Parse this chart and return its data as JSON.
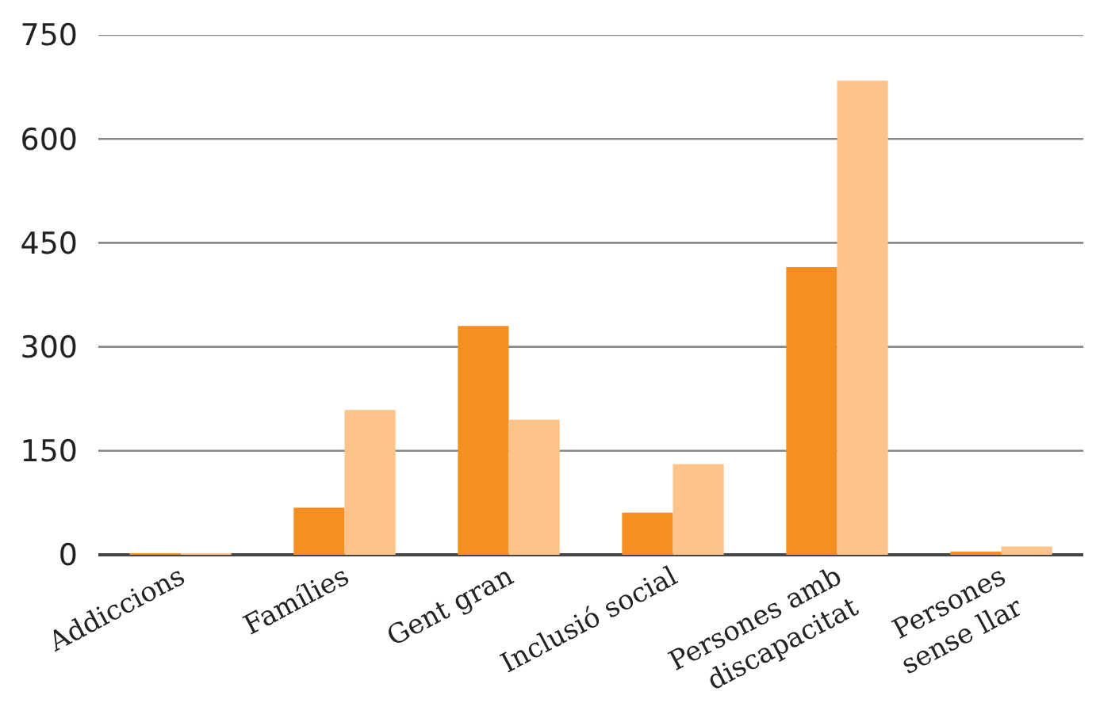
{
  "chart_data": {
    "type": "bar",
    "categories": [
      "Addiccions",
      "Famílies",
      "Gent gran",
      "Inclusió social",
      "Persones amb\ndiscapacitat",
      "Persones\nsense llar"
    ],
    "series": [
      {
        "color": "#f58f20",
        "values": [
          1,
          68,
          330,
          61,
          415,
          4
        ]
      },
      {
        "color": "#fdc38a",
        "values": [
          2,
          209,
          195,
          131,
          684,
          12
        ]
      }
    ],
    "ylim": [
      0,
      750
    ],
    "yticks": [
      0,
      150,
      300,
      450,
      600,
      750
    ],
    "grid": "y"
  }
}
